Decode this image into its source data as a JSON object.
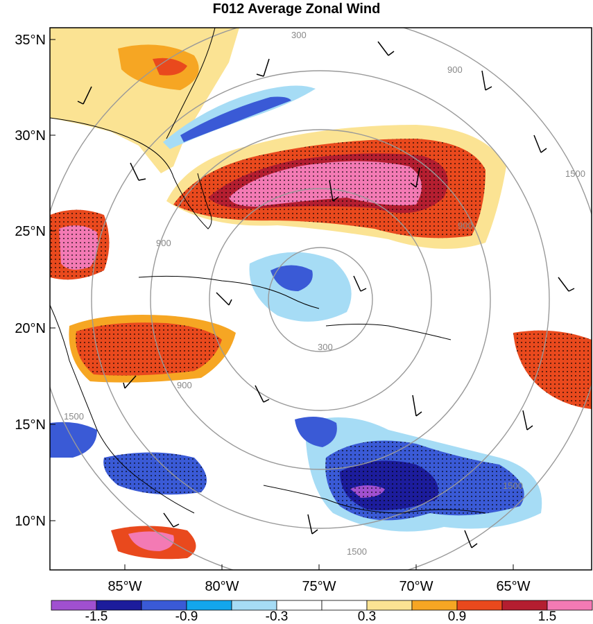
{
  "title": "F012 Average Zonal Wind",
  "lat_ticks": [
    "35°N",
    "30°N",
    "25°N",
    "20°N",
    "15°N",
    "10°N"
  ],
  "lon_ticks": [
    "85°W",
    "80°W",
    "75°W",
    "70°W",
    "65°W"
  ],
  "colorbar": {
    "colors": [
      "#a050d0",
      "#1c1c9c",
      "#3a5ad6",
      "#13a6ec",
      "#a6dcf5",
      "#ffffff",
      "#ffffff",
      "#fbe393",
      "#f6a623",
      "#e9491d",
      "#b41e30",
      "#f37ab4"
    ],
    "labels": [
      "-1.5",
      "-0.9",
      "-0.3",
      "0.3",
      "0.9",
      "1.5"
    ]
  },
  "range_rings": {
    "labels": [
      "300",
      "900",
      "1500",
      "900",
      "900",
      "900",
      "1500",
      "300",
      "1500",
      "1500"
    ]
  }
}
